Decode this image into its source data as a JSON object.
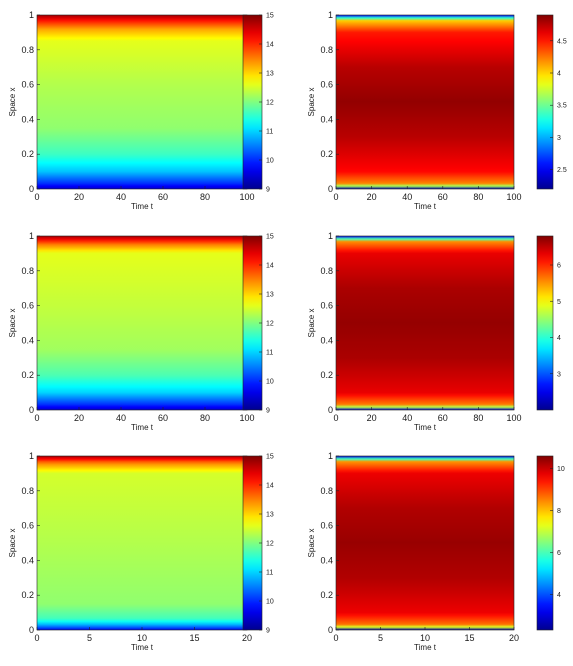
{
  "chart_data": [
    {
      "type": "heatmap",
      "xlabel": "Time t",
      "ylabel": "Space x",
      "xlim": [
        0,
        100
      ],
      "ylim": [
        0,
        1
      ],
      "xticks": [
        "0",
        "20",
        "40",
        "60",
        "80",
        "100"
      ],
      "yticks": [
        "0",
        "0.2",
        "0.4",
        "0.6",
        "0.8",
        "1"
      ],
      "colorbar": {
        "range": [
          9,
          15
        ],
        "ticks": [
          "9",
          "10",
          "11",
          "12",
          "13",
          "14",
          "15"
        ]
      },
      "field_profile_over_x": [
        [
          0,
          9.4
        ],
        [
          0.03,
          10
        ],
        [
          0.1,
          10.9
        ],
        [
          0.2,
          11.6
        ],
        [
          0.35,
          12.1
        ],
        [
          0.6,
          12.3
        ],
        [
          0.85,
          12.6
        ],
        [
          0.92,
          13.3
        ],
        [
          0.97,
          14.2
        ],
        [
          1,
          14.8
        ]
      ]
    },
    {
      "type": "heatmap",
      "xlabel": "Time t",
      "ylabel": "Space x",
      "xlim": [
        0,
        100
      ],
      "ylim": [
        0,
        1
      ],
      "xticks": [
        "0",
        "20",
        "40",
        "60",
        "80",
        "100"
      ],
      "yticks": [
        "0",
        "0.2",
        "0.4",
        "0.6",
        "0.8",
        "1"
      ],
      "colorbar": {
        "range": [
          2.2,
          4.9
        ],
        "ticks": [
          "2.5",
          "3",
          "3.5",
          "4",
          "4.5"
        ]
      },
      "field_profile_over_x": [
        [
          0,
          2.3
        ],
        [
          0.01,
          3.4
        ],
        [
          0.03,
          4.2
        ],
        [
          0.1,
          4.55
        ],
        [
          0.3,
          4.75
        ],
        [
          0.5,
          4.85
        ],
        [
          0.7,
          4.75
        ],
        [
          0.9,
          4.5
        ],
        [
          0.97,
          4.0
        ],
        [
          1,
          2.5
        ]
      ]
    },
    {
      "type": "heatmap",
      "xlabel": "Time t",
      "ylabel": "Space x",
      "xlim": [
        0,
        100
      ],
      "ylim": [
        0,
        1
      ],
      "xticks": [
        "0",
        "20",
        "40",
        "60",
        "80",
        "100"
      ],
      "yticks": [
        "0",
        "0.2",
        "0.4",
        "0.6",
        "0.8",
        "1"
      ],
      "colorbar": {
        "range": [
          9,
          15
        ],
        "ticks": [
          "9",
          "10",
          "11",
          "12",
          "13",
          "14",
          "15"
        ]
      },
      "field_profile_over_x": [
        [
          0,
          9.4
        ],
        [
          0.03,
          10
        ],
        [
          0.1,
          11
        ],
        [
          0.2,
          11.7
        ],
        [
          0.35,
          12.2
        ],
        [
          0.6,
          12.4
        ],
        [
          0.9,
          12.6
        ],
        [
          0.95,
          13.5
        ],
        [
          1,
          14.8
        ]
      ]
    },
    {
      "type": "heatmap",
      "xlabel": "Time t",
      "ylabel": "Space x",
      "xlim": [
        0,
        100
      ],
      "ylim": [
        0,
        1
      ],
      "xticks": [
        "0",
        "20",
        "40",
        "60",
        "80",
        "100"
      ],
      "yticks": [
        "0",
        "0.2",
        "0.4",
        "0.6",
        "0.8",
        "1"
      ],
      "colorbar": {
        "range": [
          2.0,
          6.8
        ],
        "ticks": [
          "3",
          "4",
          "5",
          "6"
        ]
      },
      "field_profile_over_x": [
        [
          0,
          2.3
        ],
        [
          0.01,
          4.2
        ],
        [
          0.03,
          5.6
        ],
        [
          0.1,
          6.3
        ],
        [
          0.3,
          6.6
        ],
        [
          0.5,
          6.7
        ],
        [
          0.7,
          6.6
        ],
        [
          0.9,
          6.3
        ],
        [
          0.97,
          5.5
        ],
        [
          1,
          2.5
        ]
      ]
    },
    {
      "type": "heatmap",
      "xlabel": "Time t",
      "ylabel": "Space x",
      "xlim": [
        0,
        20
      ],
      "ylim": [
        0,
        1
      ],
      "xticks": [
        "0",
        "5",
        "10",
        "15",
        "20"
      ],
      "yticks": [
        "0",
        "0.2",
        "0.4",
        "0.6",
        "0.8",
        "1"
      ],
      "colorbar": {
        "range": [
          9,
          15
        ],
        "ticks": [
          "9",
          "10",
          "11",
          "12",
          "13",
          "14",
          "15"
        ]
      },
      "field_profile_over_x": [
        [
          0,
          9.6
        ],
        [
          0.02,
          10.5
        ],
        [
          0.06,
          11.6
        ],
        [
          0.15,
          12.1
        ],
        [
          0.5,
          12.3
        ],
        [
          0.9,
          12.5
        ],
        [
          0.96,
          13.5
        ],
        [
          1,
          14.8
        ]
      ]
    },
    {
      "type": "heatmap",
      "xlabel": "Time t",
      "ylabel": "Space x",
      "xlim": [
        0,
        20
      ],
      "ylim": [
        0,
        1
      ],
      "xticks": [
        "0",
        "5",
        "10",
        "15",
        "20"
      ],
      "yticks": [
        "0",
        "0.2",
        "0.4",
        "0.6",
        "0.8",
        "1"
      ],
      "colorbar": {
        "range": [
          2.3,
          10.6
        ],
        "ticks": [
          "4",
          "6",
          "8",
          "10"
        ]
      },
      "field_profile_over_x": [
        [
          0,
          2.5
        ],
        [
          0.01,
          6.5
        ],
        [
          0.03,
          8.6
        ],
        [
          0.1,
          9.7
        ],
        [
          0.3,
          10.2
        ],
        [
          0.5,
          10.4
        ],
        [
          0.7,
          10.2
        ],
        [
          0.9,
          9.7
        ],
        [
          0.97,
          8.3
        ],
        [
          1,
          3
        ]
      ]
    }
  ]
}
